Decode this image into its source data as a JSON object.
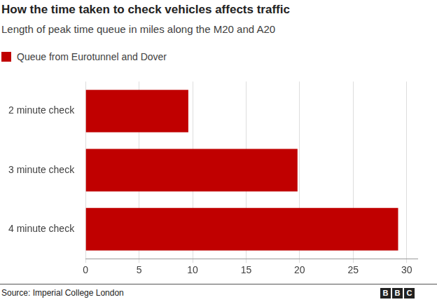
{
  "chart_data": {
    "type": "bar",
    "orientation": "horizontal",
    "title": "How the time taken to check vehicles affects traffic",
    "subtitle": "Length of peak time queue in miles along the M20 and A20",
    "categories": [
      "2 minute check",
      "3 minute check",
      "4 minute check"
    ],
    "series": [
      {
        "name": "Queue from Eurotunnel and Dover",
        "color": "#c00000",
        "values": [
          9.6,
          19.8,
          29.2
        ]
      }
    ],
    "xlim": [
      0,
      31
    ],
    "xticks": [
      0,
      5,
      10,
      15,
      20,
      25,
      30
    ],
    "grid": true,
    "legend": "top-left",
    "source": "Source: Imperial College London",
    "logo": "BBC"
  }
}
